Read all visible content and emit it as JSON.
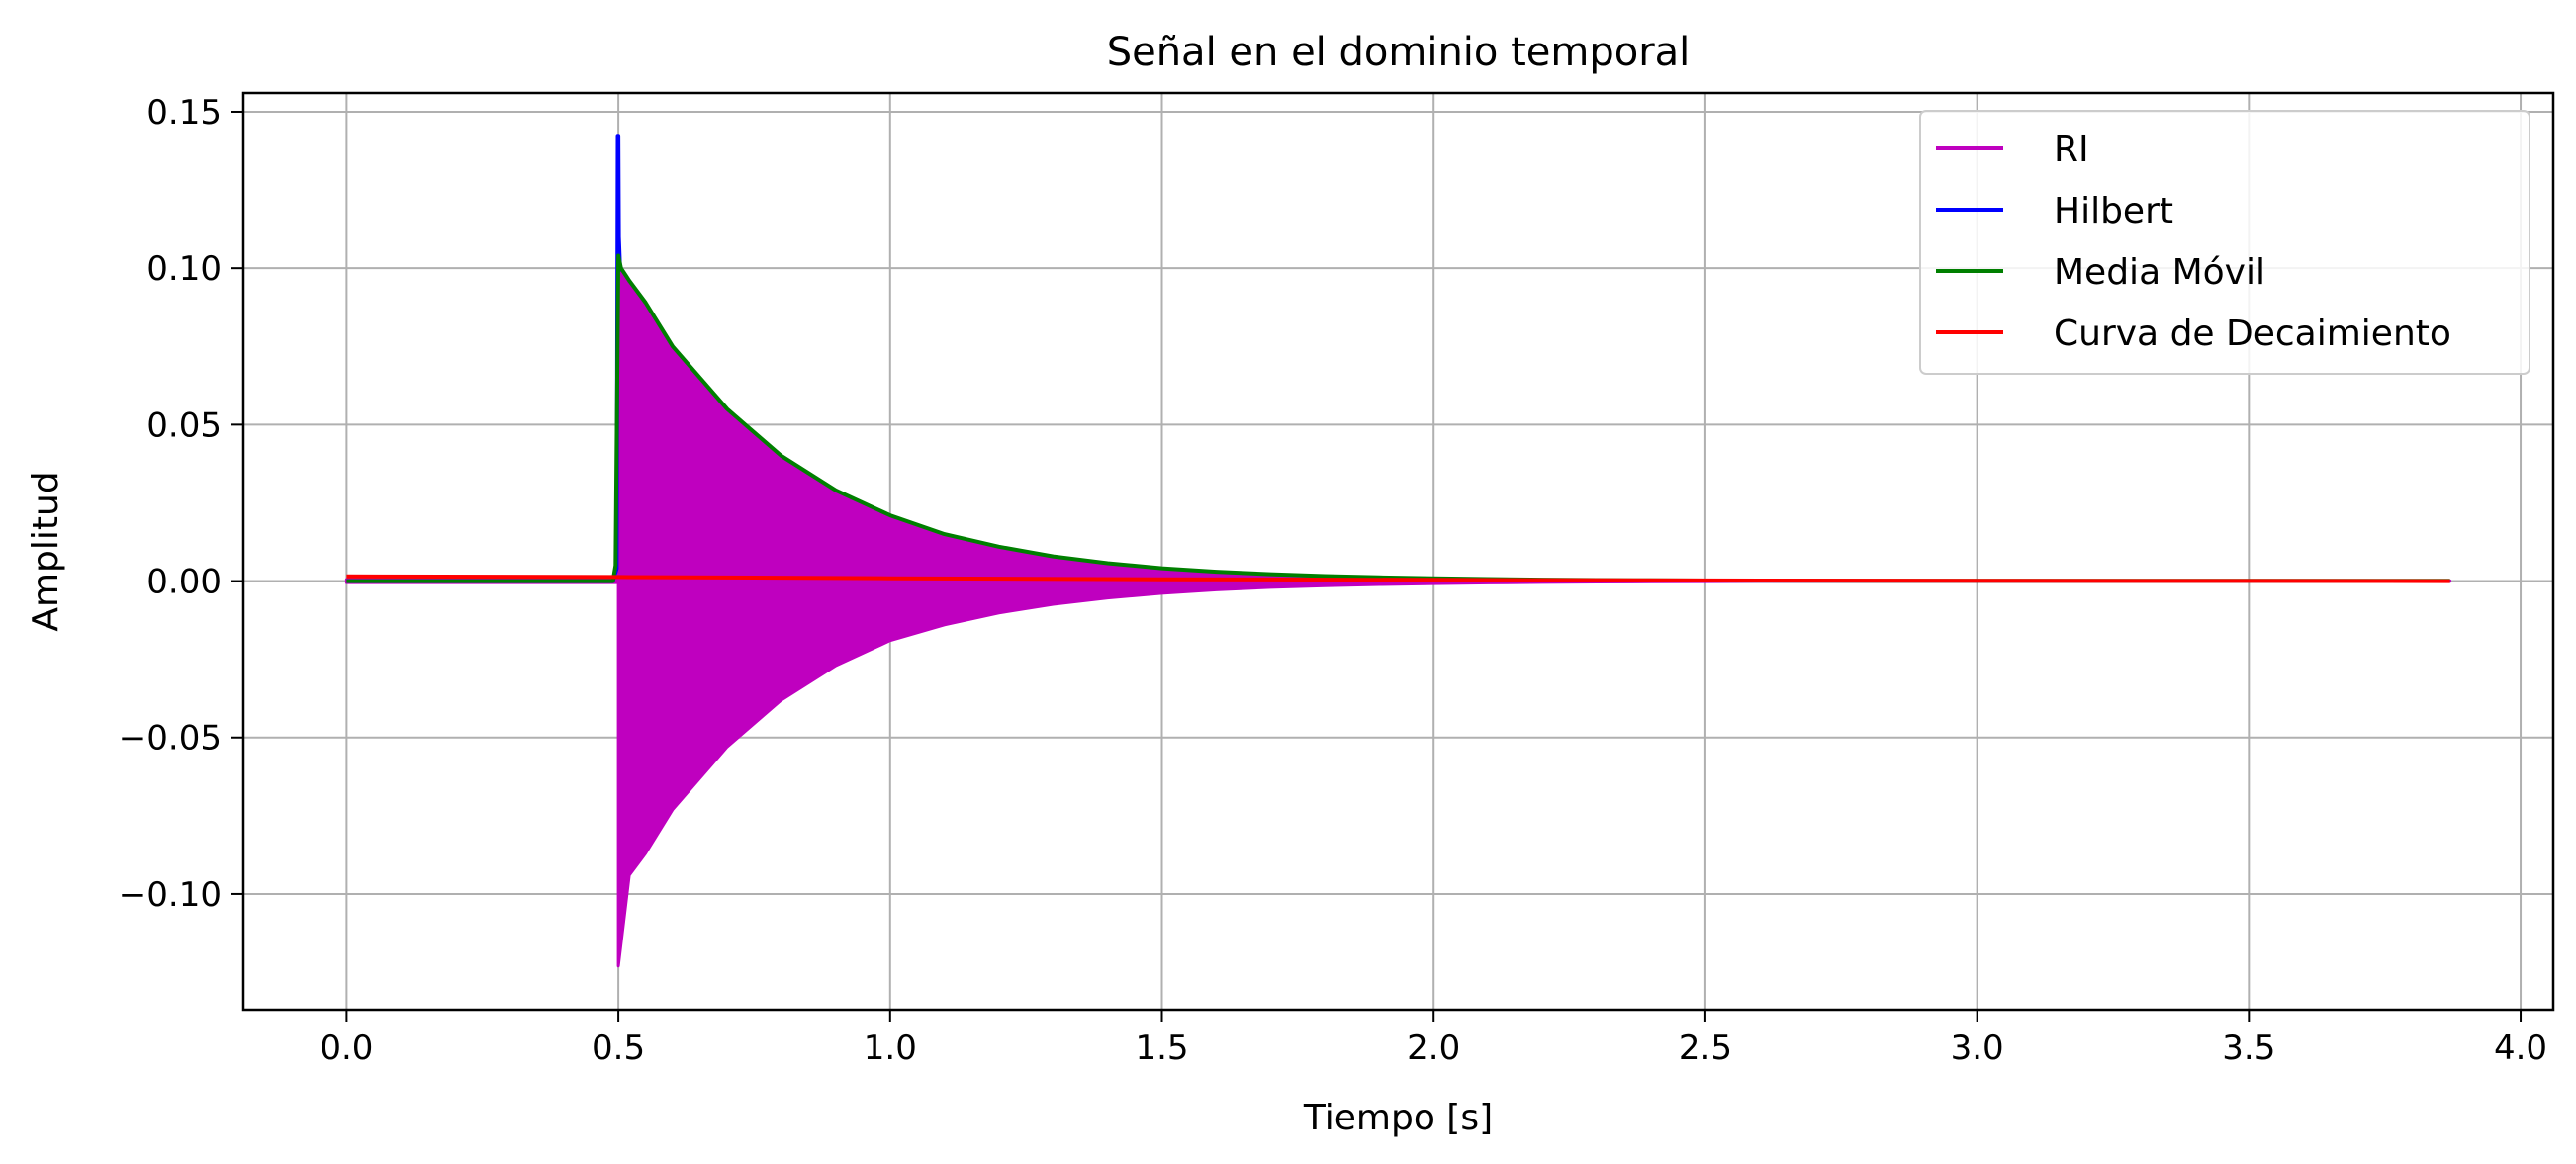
{
  "chart_data": {
    "type": "line",
    "title": "Señal en el dominio temporal",
    "xlabel": "Tiempo [s]",
    "ylabel": "Amplitud",
    "xlim": [
      -0.19,
      4.06
    ],
    "ylim": [
      -0.137,
      0.156
    ],
    "xticks": [
      0.0,
      0.5,
      1.0,
      1.5,
      2.0,
      2.5,
      3.0,
      3.5,
      4.0
    ],
    "xtick_labels": [
      "0.0",
      "0.5",
      "1.0",
      "1.5",
      "2.0",
      "2.5",
      "3.0",
      "3.5",
      "4.0"
    ],
    "yticks": [
      -0.1,
      -0.05,
      0.0,
      0.05,
      0.1,
      0.15
    ],
    "ytick_labels": [
      "−0.10",
      "−0.05",
      "0.00",
      "0.05",
      "0.10",
      "0.15"
    ],
    "grid": true,
    "legend_position": "top-right",
    "series": [
      {
        "name": "RI",
        "color": "#bf00bf",
        "style": "band",
        "x": [
          0.0,
          0.49,
          0.5,
          0.5,
          0.52,
          0.55,
          0.6,
          0.7,
          0.8,
          0.9,
          1.0,
          1.1,
          1.2,
          1.3,
          1.4,
          1.5,
          1.6,
          1.7,
          1.8,
          1.9,
          2.0,
          2.1,
          2.2,
          2.3,
          2.4,
          2.5,
          2.6,
          2.8,
          3.0,
          3.2,
          3.4,
          3.6,
          3.87
        ],
        "upper": [
          0.0005,
          0.0005,
          0.0005,
          0.1,
          0.095,
          0.088,
          0.074,
          0.054,
          0.039,
          0.028,
          0.02,
          0.0145,
          0.0105,
          0.0076,
          0.0055,
          0.004,
          0.0029,
          0.0021,
          0.0015,
          0.0011,
          0.0008,
          0.00058,
          0.00042,
          0.0003,
          0.00022,
          0.00016,
          0.00012,
          0.0001,
          0.0001,
          0.0001,
          0.0001,
          0.0001,
          0.0001
        ],
        "lower": [
          -0.0005,
          -0.0005,
          -0.0005,
          -0.123,
          -0.094,
          -0.087,
          -0.073,
          -0.053,
          -0.038,
          -0.027,
          -0.019,
          -0.014,
          -0.0102,
          -0.0074,
          -0.0054,
          -0.0039,
          -0.0028,
          -0.002,
          -0.0015,
          -0.0011,
          -0.0008,
          -0.00058,
          -0.00042,
          -0.0003,
          -0.00022,
          -0.00016,
          -0.00012,
          -0.0001,
          -0.0001,
          -0.0001,
          -0.0001,
          -0.0001,
          -0.0001
        ]
      },
      {
        "name": "Hilbert",
        "color": "#0000ff",
        "x": [
          0.0,
          0.49,
          0.497,
          0.499,
          0.5,
          0.501,
          0.503,
          0.506
        ],
        "values": [
          0.0,
          0.0,
          0.004,
          0.142,
          0.142,
          0.11,
          0.101,
          0.099
        ]
      },
      {
        "name": "Media Móvil",
        "color": "#007f00",
        "x": [
          0.0,
          0.49,
          0.495,
          0.5,
          0.505,
          0.52,
          0.55,
          0.6,
          0.7,
          0.8,
          0.9,
          1.0,
          1.1,
          1.2,
          1.3,
          1.4,
          1.5,
          1.6,
          1.7,
          1.8,
          1.9,
          2.0,
          2.1,
          2.2,
          2.3,
          2.4,
          2.5,
          2.6,
          2.8,
          3.0,
          3.2,
          3.4,
          3.6,
          3.87
        ],
        "values": [
          0.0,
          0.0,
          0.005,
          0.104,
          0.1,
          0.096,
          0.089,
          0.075,
          0.055,
          0.04,
          0.029,
          0.021,
          0.015,
          0.011,
          0.0079,
          0.0057,
          0.0041,
          0.003,
          0.0022,
          0.0016,
          0.0012,
          0.0009,
          0.00065,
          0.00047,
          0.00034,
          0.00025,
          0.00018,
          0.00013,
          0.0001,
          0.0001,
          0.0001,
          0.0001,
          0.0001,
          0.0001
        ]
      },
      {
        "name": "Curva de Decaimiento",
        "color": "#ff0000",
        "x": [
          0.0,
          0.5,
          1.0,
          1.5,
          2.0,
          2.5,
          3.0,
          3.5,
          3.87
        ],
        "values": [
          0.0015,
          0.0013,
          0.0009,
          0.0006,
          0.0004,
          0.0002,
          0.0001,
          5e-05,
          0.0
        ]
      }
    ]
  }
}
